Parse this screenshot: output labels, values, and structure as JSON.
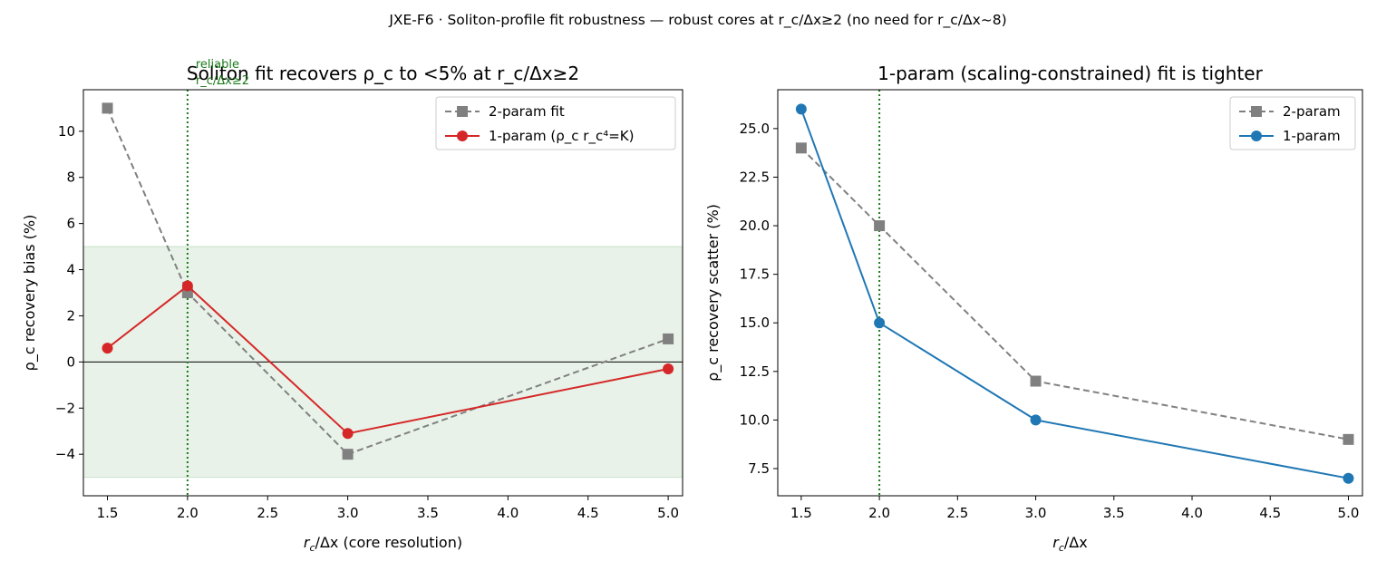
{
  "figure": {
    "suptitle": "JXE-F6 · Soliton-profile fit robustness — robust cores at r_c/Δx≥2 (no need for r_c/Δx~8)"
  },
  "chart_data": [
    {
      "type": "line",
      "title": "Soliton fit recovers ρ_c to <5% at r_c/Δx≥2",
      "xlabel_main": "r",
      "xlabel_sub": "c",
      "xlabel_rest": "/Δx (core resolution)",
      "ylabel": "ρ_c recovery bias (%)",
      "xlim": [
        1.35,
        5.09
      ],
      "ylim": [
        -5.8,
        11.8
      ],
      "xticks": [
        1.5,
        2.0,
        2.5,
        3.0,
        3.5,
        4.0,
        4.5,
        5.0
      ],
      "xtick_labels": [
        "1.5",
        "2.0",
        "2.5",
        "3.0",
        "3.5",
        "4.0",
        "4.5",
        "5.0"
      ],
      "yticks": [
        -4,
        -2,
        0,
        2,
        4,
        6,
        8,
        10
      ],
      "ytick_labels": [
        "−4",
        "−2",
        "0",
        "2",
        "4",
        "6",
        "8",
        "10"
      ],
      "band": {
        "y0": -5,
        "y1": 5,
        "color": "#e8f2e8"
      },
      "hline": {
        "y": 0,
        "color": "#000000"
      },
      "vline": {
        "x": 2.0,
        "color": "#1a7a1a",
        "label_line1": "reliable",
        "label_line2": "r_c/Δx≥2"
      },
      "legend_position": "upper right",
      "series": [
        {
          "name": "2-param fit",
          "color": "#808080",
          "marker": "square",
          "dash": true,
          "x": [
            1.5,
            2.0,
            3.0,
            5.0
          ],
          "y": [
            11.0,
            3.0,
            -4.0,
            1.0
          ]
        },
        {
          "name": "1-param (ρ_c r_c⁴=K)",
          "color": "#d62728",
          "marker": "circle",
          "dash": false,
          "x": [
            1.5,
            2.0,
            3.0,
            5.0
          ],
          "y": [
            0.6,
            3.3,
            -3.1,
            -0.3
          ]
        }
      ]
    },
    {
      "type": "line",
      "title": "1-param (scaling-constrained) fit is tighter",
      "xlabel_main": "r",
      "xlabel_sub": "c",
      "xlabel_rest": "/Δx",
      "ylabel": "ρ_c recovery scatter (%)",
      "xlim": [
        1.35,
        5.09
      ],
      "ylim": [
        6.1,
        27.0
      ],
      "xticks": [
        1.5,
        2.0,
        2.5,
        3.0,
        3.5,
        4.0,
        4.5,
        5.0
      ],
      "xtick_labels": [
        "1.5",
        "2.0",
        "2.5",
        "3.0",
        "3.5",
        "4.0",
        "4.5",
        "5.0"
      ],
      "yticks": [
        7.5,
        10.0,
        12.5,
        15.0,
        17.5,
        20.0,
        22.5,
        25.0
      ],
      "ytick_labels": [
        "7.5",
        "10.0",
        "12.5",
        "15.0",
        "17.5",
        "20.0",
        "22.5",
        "25.0"
      ],
      "vline": {
        "x": 2.0,
        "color": "#1a7a1a"
      },
      "legend_position": "upper right",
      "series": [
        {
          "name": "2-param",
          "color": "#808080",
          "marker": "square",
          "dash": true,
          "x": [
            1.5,
            2.0,
            3.0,
            5.0
          ],
          "y": [
            24.0,
            20.0,
            12.0,
            9.0
          ]
        },
        {
          "name": "1-param",
          "color": "#1f77b4",
          "marker": "circle",
          "dash": false,
          "x": [
            1.5,
            2.0,
            3.0,
            5.0
          ],
          "y": [
            26.0,
            15.0,
            10.0,
            7.0
          ]
        }
      ]
    }
  ]
}
